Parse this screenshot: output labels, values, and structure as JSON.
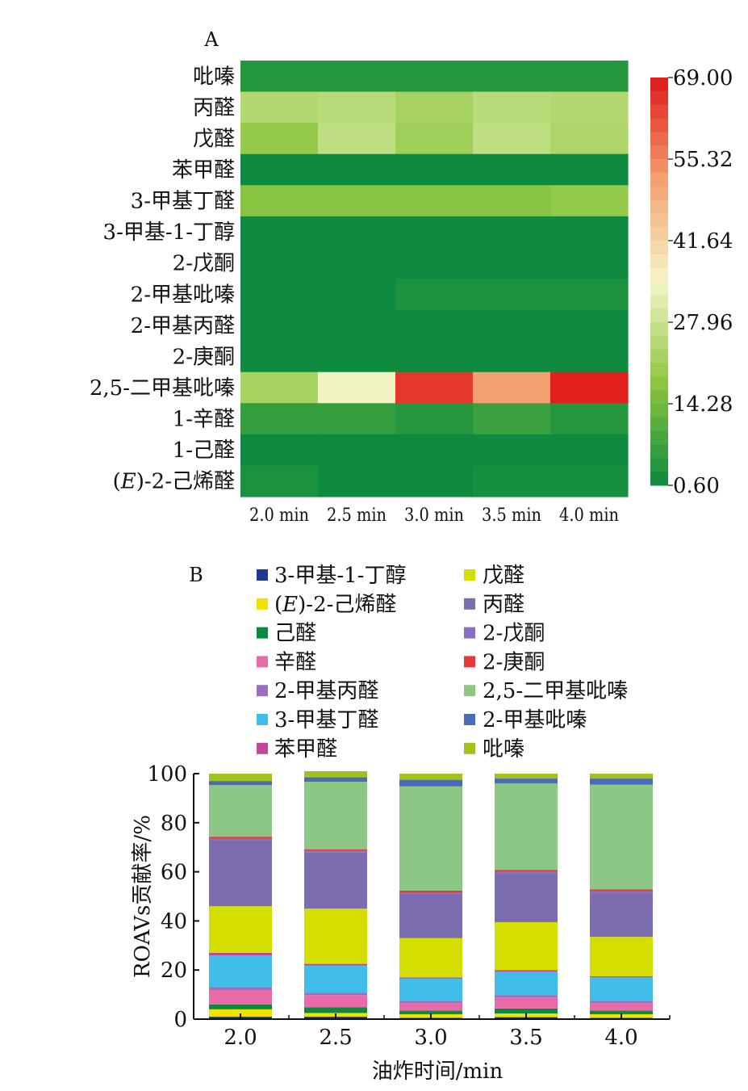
{
  "chart_data": [
    {
      "type": "heatmap",
      "panel_label": "A",
      "rows": [
        "吡嗪",
        "丙醛",
        "戊醛",
        "苯甲醛",
        "3-甲基丁醛",
        "3-甲基-1-丁醇",
        "2-戊酮",
        "2-甲基吡嗪",
        "2-甲基丙醛",
        "2-庚酮",
        "2,5-二甲基吡嗪",
        "1-辛醛",
        "1-己醛",
        "(E)-2-己烯醛"
      ],
      "columns": [
        "2.0 min",
        "2.5 min",
        "3.0 min",
        "3.5 min",
        "4.0 min"
      ],
      "values": [
        [
          4,
          4,
          4,
          4,
          4
        ],
        [
          24,
          25,
          22,
          25,
          24
        ],
        [
          19,
          26,
          21,
          26,
          23
        ],
        [
          1,
          1,
          1,
          1,
          1
        ],
        [
          17,
          17,
          17,
          17,
          19
        ],
        [
          1,
          1,
          1,
          1,
          1
        ],
        [
          1,
          1,
          1,
          1,
          1
        ],
        [
          1,
          1,
          3,
          3,
          3
        ],
        [
          1,
          1,
          1,
          1,
          1
        ],
        [
          1,
          1,
          1,
          1,
          1
        ],
        [
          22,
          34,
          65,
          52,
          68
        ],
        [
          6,
          6,
          4,
          7,
          4
        ],
        [
          1,
          1,
          1,
          1,
          1
        ],
        [
          3,
          1,
          1,
          2,
          2
        ]
      ],
      "colorbar": {
        "min": 0.6,
        "max": 69.0,
        "tick_labels": [
          "69.00",
          "55.32",
          "41.64",
          "27.96",
          "14.28",
          "0.60"
        ],
        "tick_values": [
          69.0,
          55.32,
          41.64,
          27.96,
          14.28,
          0.6
        ],
        "colors": [
          "#0b8a3e",
          "#8cc63f",
          "#f5f5c8",
          "#f4a070",
          "#e01818"
        ]
      }
    },
    {
      "type": "bar",
      "stacked": true,
      "panel_label": "B",
      "categories": [
        "2.0",
        "2.5",
        "3.0",
        "3.5",
        "4.0"
      ],
      "xlabel": "油炸时间/min",
      "ylabel": "ROAVs贡献率/%",
      "ylim": [
        0,
        100
      ],
      "yticks": [
        "0",
        "20",
        "40",
        "60",
        "80",
        "100"
      ],
      "legend_col1": [
        "3-甲基-1-丁醇",
        "(E)-2-己烯醛",
        "己醛",
        "辛醛",
        "2-甲基丙醛",
        "3-甲基丁醛",
        "苯甲醛"
      ],
      "legend_col2": [
        "戊醛",
        "丙醛",
        "2-戊酮",
        "2-庚酮",
        "2,5-二甲基吡嗪",
        "2-甲基吡嗪",
        "吡嗪"
      ],
      "series": [
        {
          "name": "3-甲基-1-丁醇",
          "color": "#1f3a93",
          "values": [
            1.0,
            1.0,
            0.5,
            0.8,
            0.5
          ]
        },
        {
          "name": "(E)-2-己烯醛",
          "color": "#f2e000",
          "values": [
            3.0,
            1.5,
            1.5,
            1.5,
            1.5
          ]
        },
        {
          "name": "己醛",
          "color": "#0a8a3c",
          "values": [
            2.0,
            2.3,
            1.5,
            2.0,
            1.5
          ]
        },
        {
          "name": "辛醛",
          "color": "#ea6aa8",
          "values": [
            6.0,
            5.0,
            3.0,
            4.5,
            3.0
          ]
        },
        {
          "name": "2-甲基丙醛",
          "color": "#9b6fc0",
          "values": [
            1.0,
            1.0,
            1.0,
            1.0,
            1.0
          ]
        },
        {
          "name": "3-甲基丁醛",
          "color": "#41bde9",
          "values": [
            13.0,
            11.0,
            9.0,
            9.5,
            9.5
          ]
        },
        {
          "name": "苯甲醛",
          "color": "#c0479a",
          "values": [
            1.0,
            0.7,
            0.5,
            0.7,
            0.5
          ]
        },
        {
          "name": "戊醛",
          "color": "#d4de00",
          "values": [
            19.0,
            22.5,
            16.0,
            19.5,
            16.0
          ]
        },
        {
          "name": "丙醛",
          "color": "#7b6db0",
          "values": [
            27.0,
            23.0,
            18.0,
            20.0,
            18.0
          ]
        },
        {
          "name": "2-戊酮",
          "color": "#8a6fbf",
          "values": [
            0.5,
            0.5,
            0.5,
            0.5,
            0.5
          ]
        },
        {
          "name": "2-庚酮",
          "color": "#e53a36",
          "values": [
            0.8,
            0.7,
            0.8,
            0.8,
            0.8
          ]
        },
        {
          "name": "2,5-二甲基吡嗪",
          "color": "#8dc785",
          "values": [
            21.0,
            27.5,
            42.5,
            35.2,
            42.7
          ]
        },
        {
          "name": "2-甲基吡嗪",
          "color": "#4a6bb5",
          "values": [
            1.7,
            1.8,
            2.7,
            2.0,
            2.5
          ]
        },
        {
          "name": "吡嗪",
          "color": "#a0c21a",
          "values": [
            3.0,
            2.5,
            2.5,
            2.0,
            2.0
          ]
        }
      ]
    }
  ]
}
